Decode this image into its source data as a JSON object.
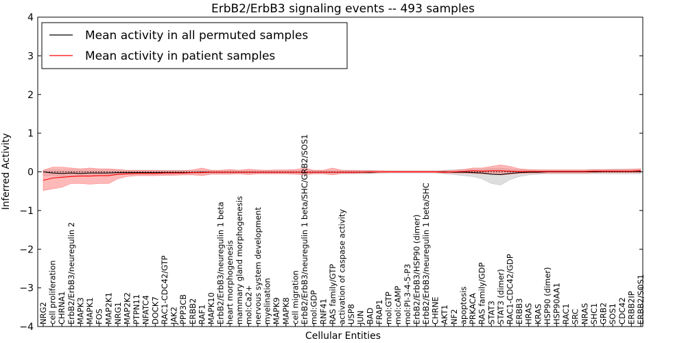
{
  "chart_data": {
    "type": "line",
    "title": "ErbB2/ErbB3 signaling events -- 493 samples",
    "xlabel": "Cellular Entities",
    "ylabel": "Inferred Activity",
    "ylim": [
      -4,
      4
    ],
    "yticks": [
      -4,
      -3,
      -2,
      -1,
      0,
      1,
      2,
      3,
      4
    ],
    "legend_position": "top-left",
    "grid": false,
    "colors": {
      "permuted": "#000000",
      "patient": "#ff0000",
      "permuted_band": "#c8c8c8",
      "patient_band": "#ff8080"
    },
    "categories": [
      "NRG2",
      "cell proliferation",
      "CHRNA1",
      "ErbB2/ErbB3/neuregulin 2",
      "MAPK3",
      "MAPK1",
      "FOS",
      "MAP2K1",
      "NRG1",
      "MAP2K2",
      "PTPN11",
      "NFATC4",
      "DOCK7",
      "RAC1-CDC42/GTP",
      "JAK2",
      "PPP3CB",
      "ERBB2",
      "RAF1",
      "MAPK10",
      "ErbB2/ErbB3/neuregulin 1 beta",
      "heart morphogenesis",
      "mammary gland morphogenesis",
      "mol:Ca2+",
      "nervous system development",
      "myelination",
      "MAPK9",
      "MAPK8",
      "cell migration",
      "ErbB2/ErbB3/neuregulin 1 beta/SHC/GRB2/SOS1",
      "mol:GDP",
      "RNF41",
      "RAS family/GTP",
      "activation of caspase activity",
      "USP8",
      "JUN",
      "BAD",
      "FRAP1",
      "mol:GTP",
      "mol:cAMP",
      "mol:PI-3-4-5-P3",
      "ErbB2/ErbB3/HSP90 (dimer)",
      "ErbB2/ErbB3/neuregulin 1 beta/SHC",
      "CHRNE",
      "AKT1",
      "NF2",
      "apoptosis",
      "PRKACA",
      "RAS family/GDP",
      "STAT3",
      "STAT3 (dimer)",
      "RAC1-CDC42/GDP",
      "ERBB3",
      "HRAS",
      "KRAS",
      "HSP90 (dimer)",
      "HSP90AA1",
      "RAC1",
      "SRC",
      "NRAS",
      "SHC1",
      "GRB2",
      "SOS1",
      "CDC42",
      "ERBB2IP",
      "ERBB2/SOS1"
    ],
    "series": [
      {
        "name": "Mean activity in all permuted samples",
        "values": [
          0.0,
          -0.03,
          -0.04,
          -0.03,
          -0.04,
          -0.03,
          -0.03,
          -0.03,
          -0.02,
          -0.02,
          -0.02,
          -0.02,
          -0.02,
          -0.02,
          -0.02,
          -0.02,
          -0.02,
          -0.01,
          -0.01,
          -0.01,
          -0.01,
          -0.01,
          -0.01,
          -0.01,
          -0.01,
          -0.01,
          -0.01,
          -0.01,
          -0.01,
          -0.01,
          -0.01,
          -0.01,
          -0.01,
          -0.01,
          -0.01,
          -0.01,
          0.0,
          0.0,
          0.0,
          0.0,
          0.0,
          0.0,
          0.0,
          0.0,
          -0.01,
          -0.01,
          -0.02,
          -0.03,
          -0.06,
          -0.07,
          -0.04,
          -0.02,
          -0.01,
          -0.01,
          0.0,
          0.0,
          0.0,
          0.0,
          0.0,
          0.0,
          0.01,
          0.01,
          0.01,
          0.01,
          0.01
        ],
        "band_upper": [
          0.05,
          0.05,
          0.05,
          0.05,
          0.05,
          0.05,
          0.05,
          0.05,
          0.05,
          0.04,
          0.04,
          0.04,
          0.04,
          0.04,
          0.04,
          0.04,
          0.04,
          0.04,
          0.04,
          0.04,
          0.04,
          0.04,
          0.04,
          0.04,
          0.04,
          0.04,
          0.04,
          0.04,
          0.04,
          0.04,
          0.04,
          0.04,
          0.04,
          0.04,
          0.04,
          0.04,
          0.03,
          0.03,
          0.03,
          0.03,
          0.03,
          0.03,
          0.03,
          0.04,
          0.05,
          0.06,
          0.06,
          0.07,
          0.09,
          0.1,
          0.08,
          0.06,
          0.05,
          0.05,
          0.05,
          0.05,
          0.05,
          0.05,
          0.05,
          0.06,
          0.06,
          0.07,
          0.07,
          0.07,
          0.07
        ],
        "band_lower": [
          -0.1,
          -0.1,
          -0.12,
          -0.1,
          -0.1,
          -0.1,
          -0.1,
          -0.1,
          -0.08,
          -0.07,
          -0.07,
          -0.07,
          -0.07,
          -0.07,
          -0.07,
          -0.06,
          -0.06,
          -0.06,
          -0.05,
          -0.05,
          -0.05,
          -0.05,
          -0.05,
          -0.05,
          -0.05,
          -0.05,
          -0.05,
          -0.05,
          -0.05,
          -0.05,
          -0.05,
          -0.05,
          -0.05,
          -0.05,
          -0.05,
          -0.05,
          -0.04,
          -0.03,
          -0.03,
          -0.03,
          -0.03,
          -0.03,
          -0.03,
          -0.05,
          -0.07,
          -0.1,
          -0.12,
          -0.18,
          -0.3,
          -0.34,
          -0.2,
          -0.12,
          -0.08,
          -0.06,
          -0.05,
          -0.05,
          -0.05,
          -0.05,
          -0.05,
          -0.05,
          -0.05,
          -0.05,
          -0.05,
          -0.05,
          -0.05
        ]
      },
      {
        "name": "Mean activity in patient samples",
        "values": [
          -0.22,
          -0.16,
          -0.14,
          -0.12,
          -0.11,
          -0.11,
          -0.1,
          -0.1,
          -0.06,
          -0.05,
          -0.04,
          -0.04,
          -0.04,
          -0.03,
          -0.03,
          -0.03,
          -0.02,
          -0.02,
          -0.01,
          -0.01,
          -0.01,
          -0.01,
          -0.01,
          -0.01,
          -0.01,
          -0.01,
          -0.01,
          -0.01,
          -0.01,
          -0.01,
          -0.01,
          -0.01,
          -0.01,
          -0.01,
          -0.01,
          0.0,
          0.0,
          0.0,
          0.0,
          0.0,
          0.0,
          0.0,
          0.0,
          -0.01,
          0.0,
          0.01,
          0.03,
          0.02,
          0.03,
          0.03,
          0.02,
          0.01,
          0.01,
          0.01,
          0.01,
          0.01,
          0.01,
          0.01,
          0.01,
          0.02,
          0.02,
          0.02,
          0.02,
          0.02,
          0.03
        ],
        "band_upper": [
          0.04,
          0.12,
          0.12,
          0.1,
          0.08,
          0.1,
          0.08,
          0.08,
          0.06,
          0.04,
          0.04,
          0.04,
          0.04,
          0.03,
          0.03,
          0.03,
          0.05,
          0.1,
          0.04,
          0.04,
          0.06,
          0.04,
          0.07,
          0.05,
          0.04,
          0.05,
          0.05,
          0.06,
          0.1,
          0.04,
          0.04,
          0.1,
          0.04,
          0.04,
          0.03,
          0.03,
          0.03,
          0.02,
          0.02,
          0.02,
          0.02,
          0.02,
          0.02,
          0.03,
          0.04,
          0.06,
          0.1,
          0.1,
          0.14,
          0.18,
          0.14,
          0.08,
          0.06,
          0.05,
          0.05,
          0.05,
          0.05,
          0.05,
          0.05,
          0.06,
          0.06,
          0.06,
          0.06,
          0.07,
          0.08
        ],
        "band_lower": [
          -0.48,
          -0.44,
          -0.4,
          -0.3,
          -0.3,
          -0.32,
          -0.3,
          -0.3,
          -0.18,
          -0.12,
          -0.1,
          -0.1,
          -0.1,
          -0.09,
          -0.09,
          -0.08,
          -0.08,
          -0.1,
          -0.06,
          -0.06,
          -0.06,
          -0.05,
          -0.07,
          -0.05,
          -0.05,
          -0.05,
          -0.05,
          -0.06,
          -0.08,
          -0.05,
          -0.05,
          -0.08,
          -0.04,
          -0.04,
          -0.03,
          -0.03,
          -0.02,
          -0.02,
          -0.02,
          -0.02,
          -0.02,
          -0.02,
          -0.02,
          -0.03,
          -0.03,
          -0.03,
          -0.04,
          -0.05,
          -0.06,
          -0.08,
          -0.06,
          -0.04,
          -0.03,
          -0.03,
          -0.03,
          -0.03,
          -0.03,
          -0.03,
          -0.03,
          -0.02,
          -0.02,
          -0.02,
          -0.02,
          -0.02,
          -0.02
        ]
      }
    ]
  }
}
